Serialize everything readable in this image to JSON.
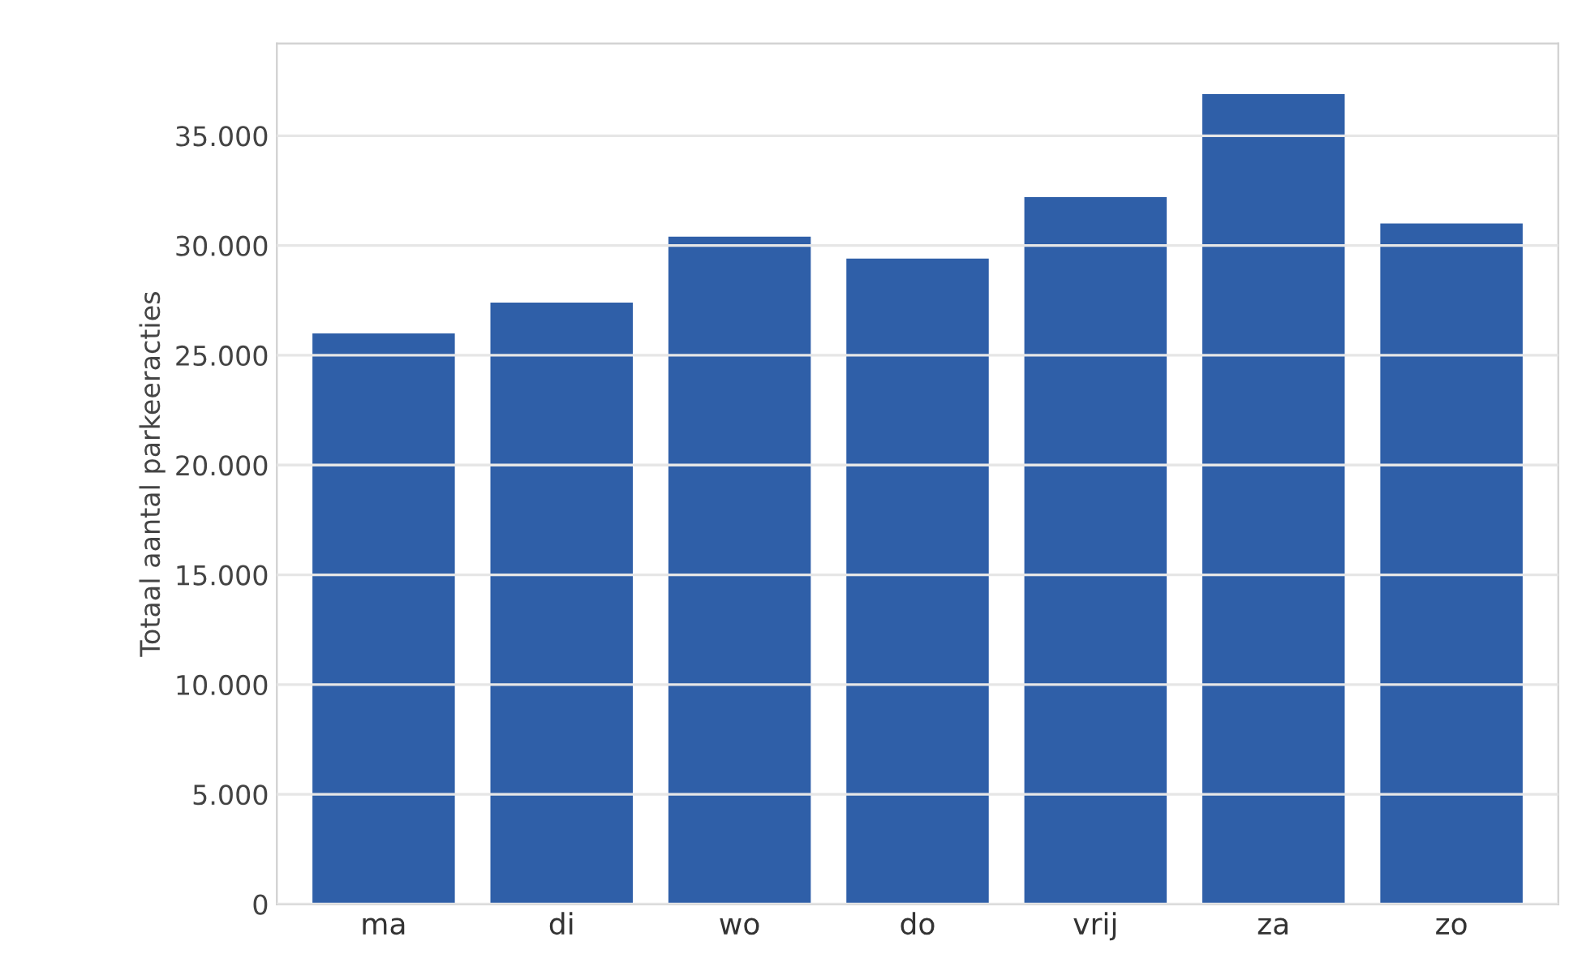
{
  "chart_data": {
    "type": "bar",
    "ylabel": "Totaal aantal parkeeracties",
    "categories": [
      "ma",
      "di",
      "wo",
      "do",
      "vrij",
      "za",
      "zo"
    ],
    "values": [
      26000,
      27400,
      30400,
      29400,
      32200,
      36900,
      31000
    ],
    "color": "#2f5fa8",
    "ylim": [
      0,
      39200
    ],
    "yticks": [
      0,
      {
        "value": 5000,
        "label": "5.000"
      },
      {
        "value": 10000,
        "label": "10.000"
      },
      {
        "value": 15000,
        "label": "15.000"
      },
      {
        "value": 20000,
        "label": "20.000"
      },
      {
        "value": 25000,
        "label": "25.000"
      },
      {
        "value": 30000,
        "label": "30.000"
      },
      {
        "value": 35000,
        "label": "35.000"
      }
    ],
    "grid": "y"
  }
}
